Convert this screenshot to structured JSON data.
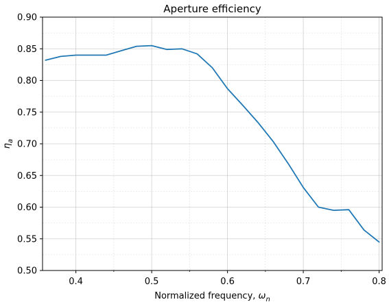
{
  "chart_data": {
    "type": "line",
    "title": "Aperture efficiency",
    "xlabel_parts": [
      "Normalized frequency, ",
      "ω",
      "n"
    ],
    "ylabel_parts": [
      "η",
      "a"
    ],
    "xlim": [
      0.356,
      0.804
    ],
    "ylim": [
      0.5,
      0.9
    ],
    "x_ticks": [
      0.4,
      0.5,
      0.6,
      0.7,
      0.8
    ],
    "x_tick_labels": [
      "0.4",
      "0.5",
      "0.6",
      "0.7",
      "0.8"
    ],
    "x_minor_ticks": [
      0.45,
      0.55,
      0.65,
      0.75
    ],
    "y_ticks": [
      0.5,
      0.55,
      0.6,
      0.65,
      0.7,
      0.75,
      0.8,
      0.85,
      0.9
    ],
    "y_tick_labels": [
      "0.50",
      "0.55",
      "0.60",
      "0.65",
      "0.70",
      "0.75",
      "0.80",
      "0.85",
      "0.90"
    ],
    "grid": true,
    "series_color": "#1f77b4",
    "series": [
      {
        "x": [
          0.36,
          0.38,
          0.4,
          0.42,
          0.44,
          0.46,
          0.48,
          0.5,
          0.52,
          0.54,
          0.56,
          0.58,
          0.6,
          0.62,
          0.64,
          0.66,
          0.68,
          0.7,
          0.72,
          0.74,
          0.76,
          0.78,
          0.8
        ],
        "values": [
          0.832,
          0.838,
          0.84,
          0.84,
          0.84,
          0.847,
          0.854,
          0.855,
          0.849,
          0.85,
          0.842,
          0.82,
          0.787,
          0.761,
          0.734,
          0.704,
          0.669,
          0.631,
          0.6,
          0.595,
          0.596,
          0.564,
          0.545
        ]
      }
    ]
  }
}
